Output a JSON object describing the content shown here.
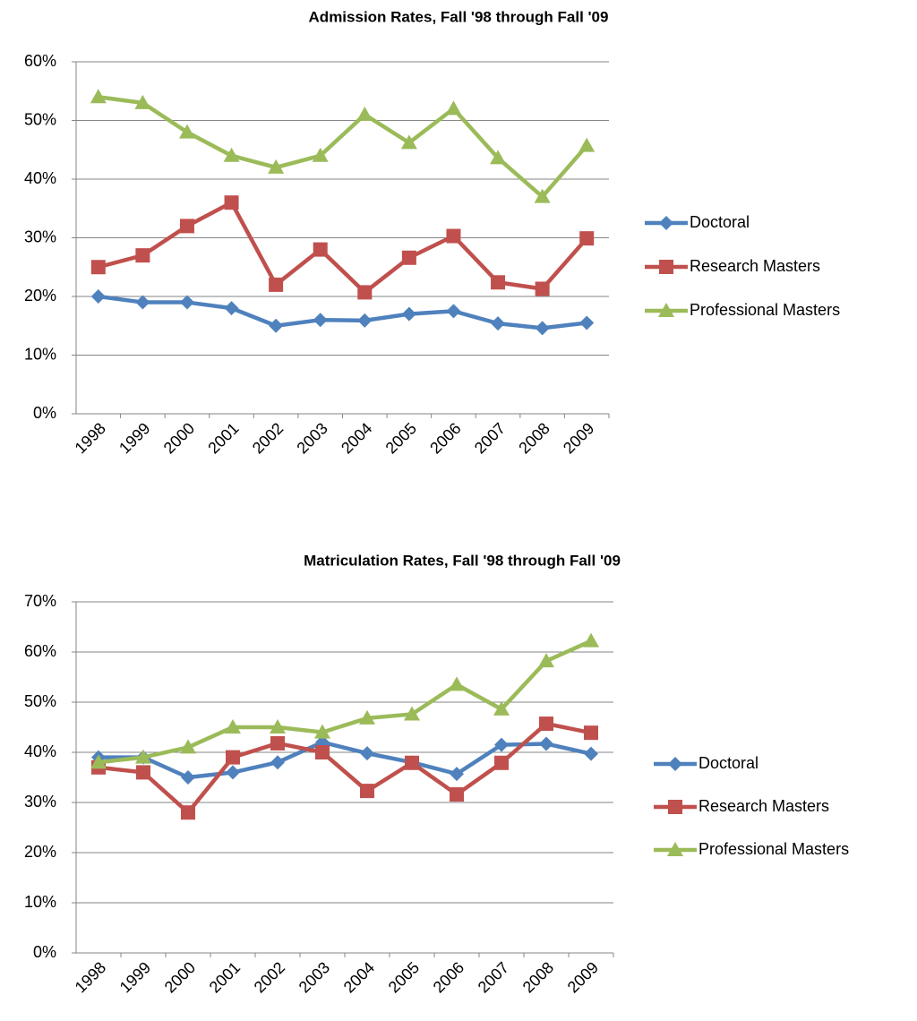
{
  "chart_data": [
    {
      "type": "line",
      "title": "Admission Rates, Fall '98 through Fall '09",
      "categories": [
        "1998",
        "1999",
        "2000",
        "2001",
        "2002",
        "2003",
        "2004",
        "2005",
        "2006",
        "2007",
        "2008",
        "2009"
      ],
      "series": [
        {
          "name": "Doctoral",
          "color": "#4f81bd",
          "marker": "diamond",
          "values": [
            20,
            19,
            19,
            18,
            15,
            16,
            15.9,
            17,
            17.5,
            15.4,
            14.6,
            15.5
          ]
        },
        {
          "name": "Research Masters",
          "color": "#c0504d",
          "marker": "square",
          "values": [
            25,
            27,
            32,
            36,
            22,
            28,
            20.7,
            26.6,
            30.3,
            22.4,
            21.3,
            29.9
          ]
        },
        {
          "name": "Professional Masters",
          "color": "#9bbb59",
          "marker": "triangle",
          "values": [
            54,
            53,
            48,
            44,
            42,
            44,
            51,
            46.2,
            52,
            43.6,
            37,
            45.7
          ]
        }
      ],
      "ylim": [
        0,
        60
      ],
      "yticks": [
        {
          "value": 0,
          "label": "0%"
        },
        {
          "value": 10,
          "label": "10%"
        },
        {
          "value": 20,
          "label": "20%"
        },
        {
          "value": 30,
          "label": "30%"
        },
        {
          "value": 40,
          "label": "40%"
        },
        {
          "value": 50,
          "label": "50%"
        },
        {
          "value": 60,
          "label": "60%"
        }
      ],
      "grid": true,
      "legend": "right"
    },
    {
      "type": "line",
      "title": "Matriculation Rates, Fall '98 through Fall '09",
      "categories": [
        "1998",
        "1999",
        "2000",
        "2001",
        "2002",
        "2003",
        "2004",
        "2005",
        "2006",
        "2007",
        "2008",
        "2009"
      ],
      "series": [
        {
          "name": "Doctoral",
          "color": "#4f81bd",
          "marker": "diamond",
          "values": [
            39,
            39,
            35,
            36,
            38,
            42,
            39.8,
            38,
            35.7,
            41.5,
            41.7,
            39.7
          ]
        },
        {
          "name": "Research Masters",
          "color": "#c0504d",
          "marker": "square",
          "values": [
            37,
            36,
            28,
            39,
            41.8,
            40,
            32.3,
            37.9,
            31.6,
            37.9,
            45.7,
            43.9
          ]
        },
        {
          "name": "Professional Masters",
          "color": "#9bbb59",
          "marker": "triangle",
          "values": [
            38,
            39,
            41,
            45,
            45,
            44,
            46.8,
            47.6,
            53.5,
            48.6,
            58.2,
            62.2
          ]
        }
      ],
      "ylim": [
        0,
        70
      ],
      "yticks": [
        {
          "value": 0,
          "label": "0%"
        },
        {
          "value": 10,
          "label": "10%"
        },
        {
          "value": 20,
          "label": "20%"
        },
        {
          "value": 30,
          "label": "30%"
        },
        {
          "value": 40,
          "label": "40%"
        },
        {
          "value": 50,
          "label": "50%"
        },
        {
          "value": 60,
          "label": "60%"
        },
        {
          "value": 70,
          "label": "70%"
        }
      ],
      "grid": true,
      "legend": "right"
    }
  ]
}
